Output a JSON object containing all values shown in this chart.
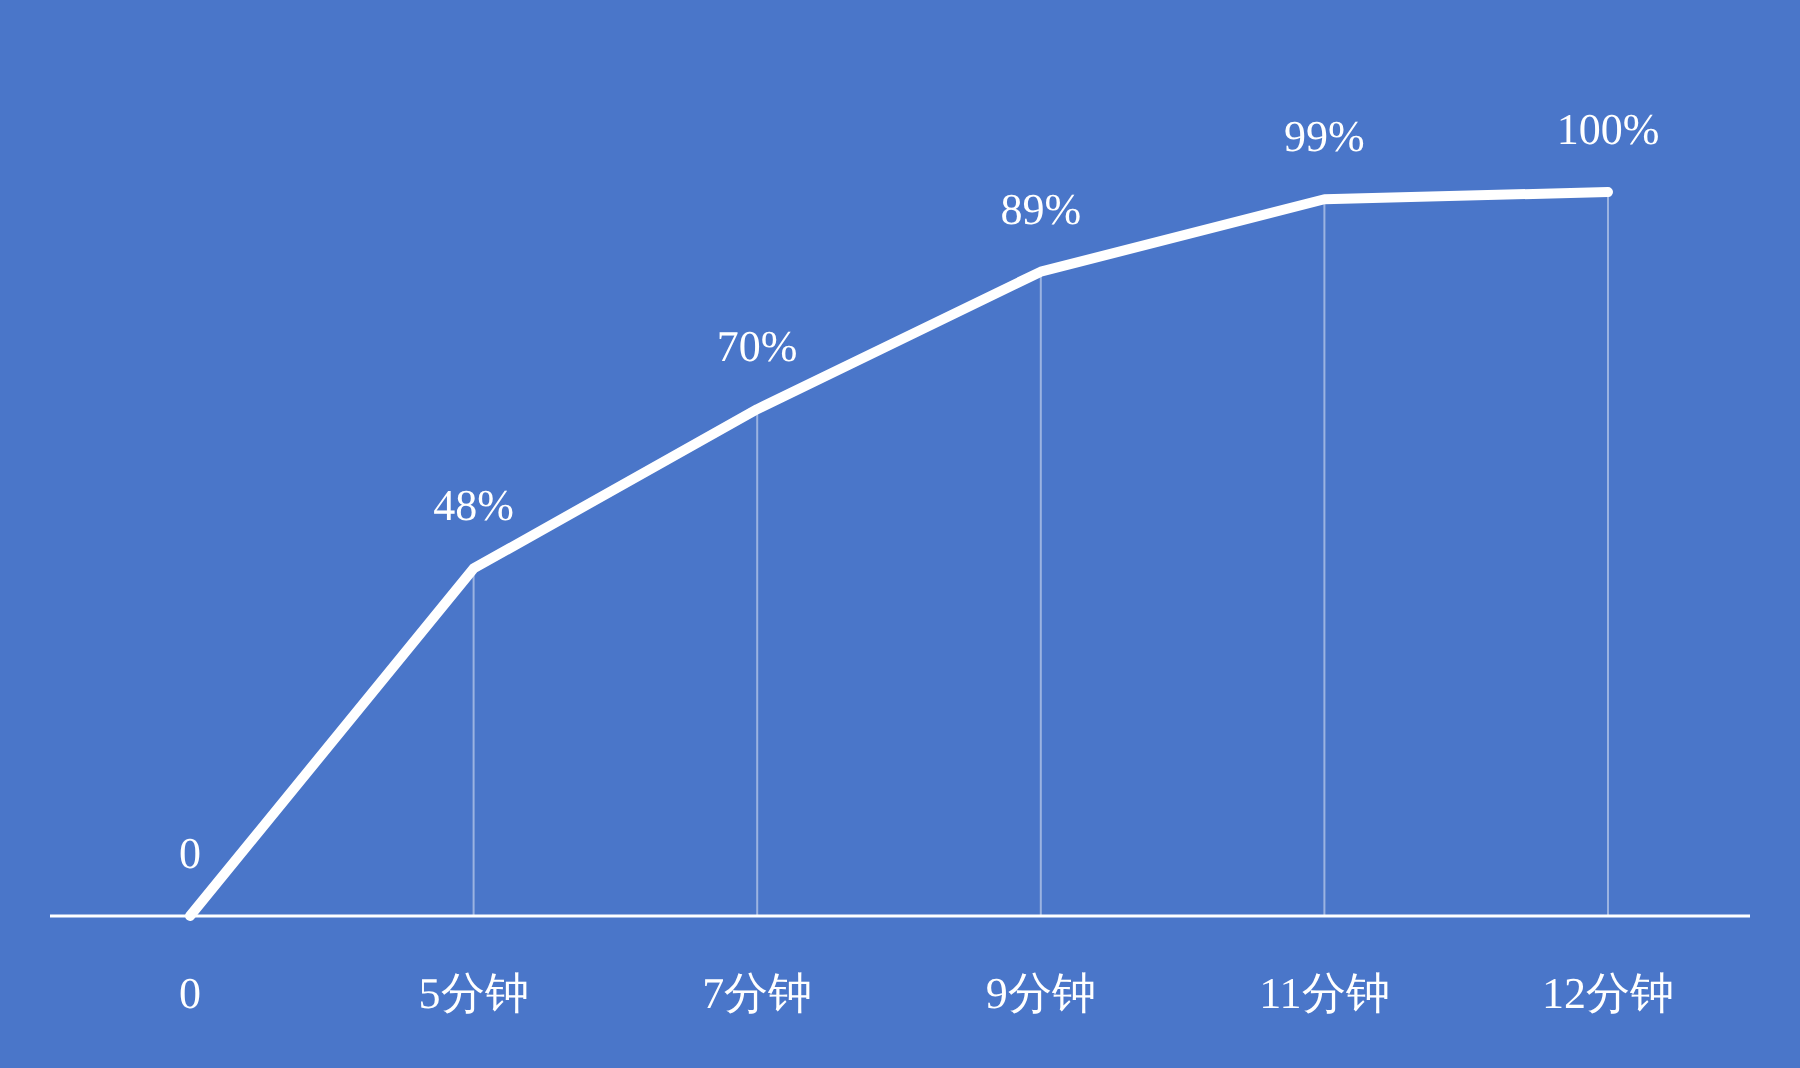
{
  "chart_data": {
    "type": "line",
    "categories": [
      "0",
      "5分钟",
      "7分钟",
      "9分钟",
      "11分钟",
      "12分钟"
    ],
    "values": [
      0,
      48,
      70,
      89,
      99,
      100
    ],
    "value_labels": [
      "0",
      "48%",
      "70%",
      "89%",
      "99%",
      "100%"
    ],
    "color": "#ffffff",
    "marker": "none",
    "line_style": "solid",
    "grid": "x"
  }
}
